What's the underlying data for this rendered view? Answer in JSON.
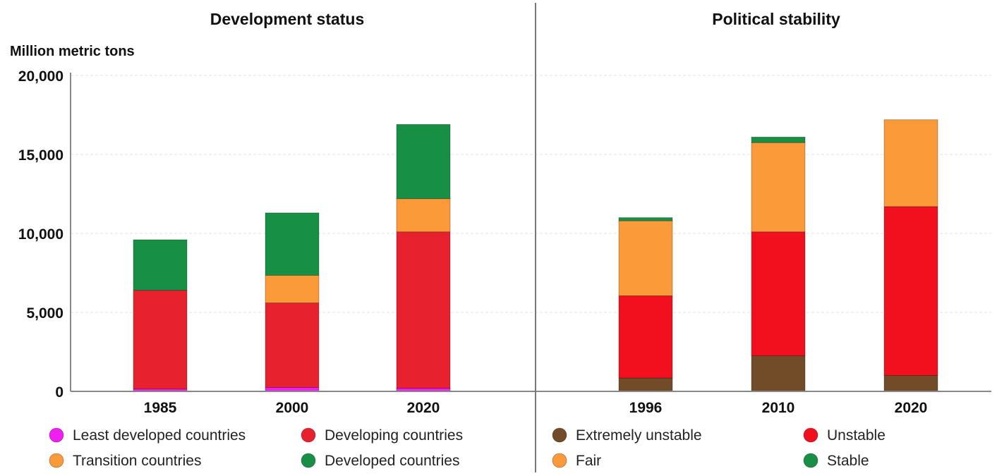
{
  "colors": {
    "least_developed": "#f01ef0",
    "developing": "#e8212e",
    "transition": "#fb9a38",
    "developed": "#178f45",
    "extremely_unstable": "#724b28",
    "unstable": "#f2101e",
    "fair": "#fb9a38",
    "stable": "#178f45"
  },
  "chart_data": [
    {
      "type": "bar",
      "stacked": true,
      "title": "Development status",
      "ylabel": "Million metric tons",
      "ylim": [
        0,
        20000
      ],
      "yticks": [
        0,
        5000,
        10000,
        15000,
        20000
      ],
      "ytick_labels": [
        "0",
        "5,000",
        "10,000",
        "15,000",
        "20,000"
      ],
      "categories": [
        "1985",
        "2000",
        "2020"
      ],
      "legend_position": "bottom",
      "series": [
        {
          "name": "Least developed countries",
          "color_key": "least_developed",
          "values": [
            150,
            250,
            200
          ]
        },
        {
          "name": "Developing countries",
          "color_key": "developing",
          "values": [
            6250,
            5350,
            9900
          ]
        },
        {
          "name": "Transition countries",
          "color_key": "transition",
          "values": [
            0,
            1750,
            2100
          ]
        },
        {
          "name": "Developed countries",
          "color_key": "developed",
          "values": [
            3200,
            3950,
            4700
          ]
        }
      ]
    },
    {
      "type": "bar",
      "stacked": true,
      "title": "Political stability",
      "ylim": [
        0,
        20000
      ],
      "categories": [
        "1996",
        "2010",
        "2020"
      ],
      "legend_position": "bottom",
      "series": [
        {
          "name": "Extremely unstable",
          "color_key": "extremely_unstable",
          "values": [
            850,
            2250,
            1000
          ]
        },
        {
          "name": "Unstable",
          "color_key": "unstable",
          "values": [
            5200,
            7850,
            10700
          ]
        },
        {
          "name": "Fair",
          "color_key": "fair",
          "values": [
            4750,
            5650,
            5500
          ]
        },
        {
          "name": "Stable",
          "color_key": "stable",
          "values": [
            200,
            350,
            0
          ]
        }
      ]
    }
  ]
}
